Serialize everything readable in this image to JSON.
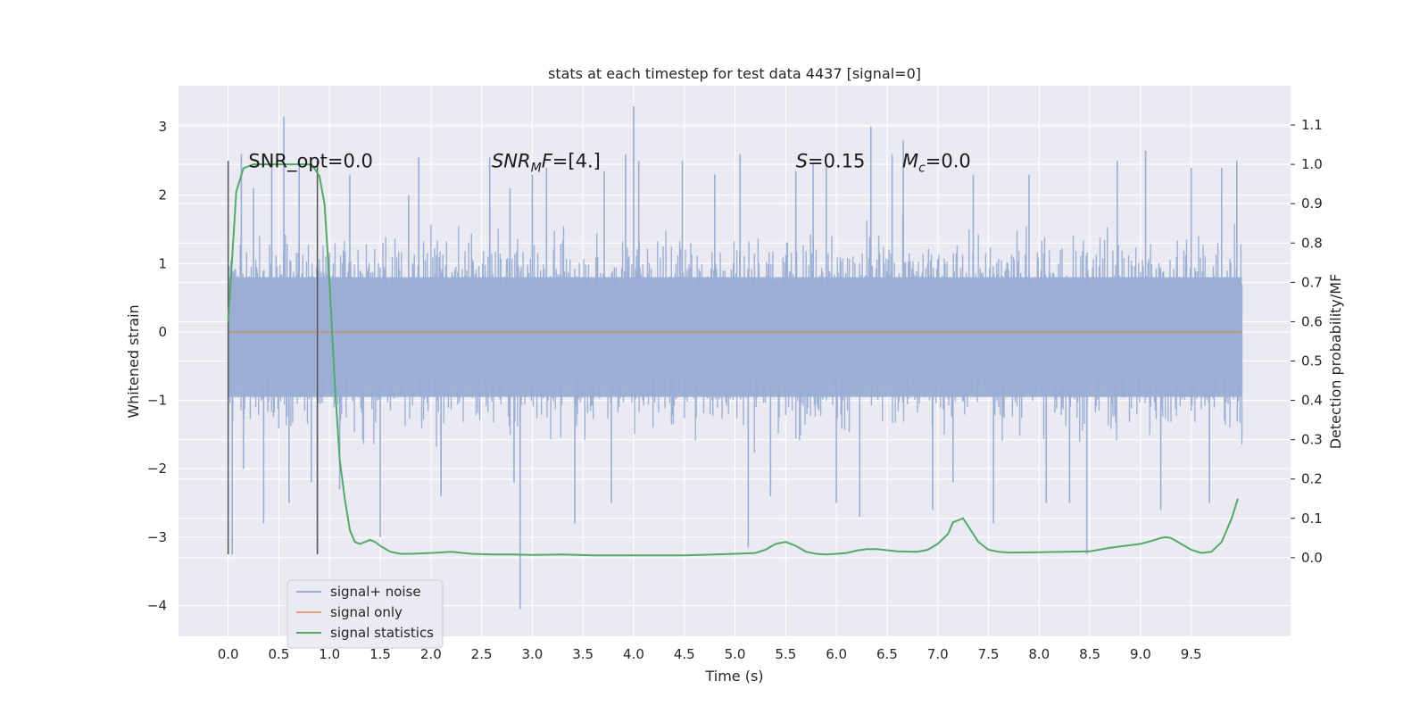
{
  "chart_data": {
    "type": "line",
    "title": "stats at each timestep for test data 4437 [signal=0]",
    "xlabel": "Time (s)",
    "ylabel": "Whitened strain",
    "y2label": "Detection probability/MF",
    "xlim": [
      -0.49,
      10.48
    ],
    "ylim": [
      -4.45,
      3.6
    ],
    "y2lim": [
      -0.2,
      1.2
    ],
    "x_ticks": [
      "0.0",
      "0.5",
      "1.0",
      "1.5",
      "2.0",
      "2.5",
      "3.0",
      "3.5",
      "4.0",
      "4.5",
      "5.0",
      "5.5",
      "6.0",
      "6.5",
      "7.0",
      "7.5",
      "8.0",
      "8.5",
      "9.0",
      "9.5"
    ],
    "y_ticks": [
      "3",
      "2",
      "1",
      "0",
      "−1",
      "−2",
      "−3",
      "−4"
    ],
    "y2_ticks": [
      "1.1",
      "1.0",
      "0.9",
      "0.8",
      "0.7",
      "0.6",
      "0.5",
      "0.4",
      "0.3",
      "0.2",
      "0.1",
      "0.0"
    ],
    "grid": true,
    "legend_position": "lower-left",
    "colors": {
      "noise": "#9aaed3",
      "signal": "#dd8452",
      "stats": "#55a868",
      "background": "#eaeaf2",
      "vline": "#555555"
    },
    "series": [
      {
        "name": "signal+ noise",
        "kind": "noise_band",
        "x_range": [
          0.0,
          10.0
        ],
        "typical_envelope": [
          -1.5,
          1.35
        ],
        "spikes": [
          [
            0.04,
            -3.25
          ],
          [
            0.15,
            -2.0
          ],
          [
            0.13,
            2.6
          ],
          [
            0.25,
            2.1
          ],
          [
            0.35,
            -2.8
          ],
          [
            0.43,
            2.4
          ],
          [
            0.55,
            3.15
          ],
          [
            0.6,
            -2.5
          ],
          [
            0.7,
            2.5
          ],
          [
            0.82,
            -2.2
          ],
          [
            0.88,
            -3.25
          ],
          [
            1.1,
            -2.3
          ],
          [
            1.2,
            2.3
          ],
          [
            1.5,
            -3.0
          ],
          [
            1.78,
            2.0
          ],
          [
            1.88,
            2.55
          ],
          [
            2.1,
            -2.4
          ],
          [
            2.58,
            2.55
          ],
          [
            2.78,
            2.1
          ],
          [
            2.82,
            -2.2
          ],
          [
            2.88,
            -4.05
          ],
          [
            3.0,
            2.3
          ],
          [
            3.14,
            2.4
          ],
          [
            3.42,
            -2.8
          ],
          [
            3.71,
            2.35
          ],
          [
            3.78,
            -2.5
          ],
          [
            3.92,
            2.6
          ],
          [
            4.0,
            3.3
          ],
          [
            4.05,
            2.5
          ],
          [
            4.48,
            2.5
          ],
          [
            4.8,
            2.3
          ],
          [
            5.05,
            2.6
          ],
          [
            5.13,
            -3.15
          ],
          [
            5.35,
            -2.4
          ],
          [
            5.6,
            2.35
          ],
          [
            5.77,
            2.45
          ],
          [
            5.9,
            2.45
          ],
          [
            6.0,
            -2.5
          ],
          [
            6.23,
            -2.7
          ],
          [
            6.34,
            3.0
          ],
          [
            6.55,
            2.6
          ],
          [
            6.66,
            2.8
          ],
          [
            6.95,
            -2.6
          ],
          [
            7.15,
            -2.2
          ],
          [
            7.35,
            2.3
          ],
          [
            7.55,
            -2.8
          ],
          [
            7.9,
            2.3
          ],
          [
            8.07,
            -2.5
          ],
          [
            8.3,
            -2.5
          ],
          [
            8.47,
            -3.25
          ],
          [
            8.77,
            2.5
          ],
          [
            9.05,
            2.65
          ],
          [
            9.2,
            -2.6
          ],
          [
            9.5,
            2.4
          ],
          [
            9.68,
            -2.5
          ],
          [
            9.8,
            2.4
          ],
          [
            9.95,
            2.5
          ]
        ]
      },
      {
        "name": "signal only",
        "kind": "line",
        "x": [
          0.0,
          10.0
        ],
        "y": [
          0.0,
          0.0
        ]
      },
      {
        "name": "signal statistics",
        "kind": "line",
        "axis": "right",
        "x": [
          0.0,
          0.08,
          0.15,
          0.25,
          0.35,
          0.45,
          0.55,
          0.65,
          0.75,
          0.8,
          0.85,
          0.9,
          0.95,
          1.0,
          1.05,
          1.1,
          1.15,
          1.2,
          1.25,
          1.3,
          1.35,
          1.4,
          1.45,
          1.5,
          1.6,
          1.7,
          1.8,
          2.0,
          2.2,
          2.4,
          2.6,
          2.8,
          3.0,
          3.3,
          3.6,
          4.0,
          4.5,
          4.8,
          5.0,
          5.2,
          5.3,
          5.4,
          5.5,
          5.55,
          5.6,
          5.7,
          5.8,
          5.9,
          6.0,
          6.1,
          6.2,
          6.3,
          6.4,
          6.6,
          6.8,
          6.9,
          7.0,
          7.1,
          7.15,
          7.2,
          7.25,
          7.3,
          7.4,
          7.5,
          7.6,
          7.7,
          8.0,
          8.5,
          8.7,
          9.0,
          9.1,
          9.2,
          9.25,
          9.3,
          9.4,
          9.5,
          9.6,
          9.7,
          9.8,
          9.9,
          9.96
        ],
        "y": [
          0.6,
          0.93,
          0.99,
          1.0,
          1.0,
          1.0,
          1.0,
          1.0,
          1.0,
          1.0,
          0.99,
          0.97,
          0.9,
          0.7,
          0.45,
          0.25,
          0.15,
          0.07,
          0.04,
          0.035,
          0.04,
          0.045,
          0.04,
          0.03,
          0.015,
          0.01,
          0.01,
          0.012,
          0.015,
          0.01,
          0.008,
          0.008,
          0.007,
          0.008,
          0.006,
          0.006,
          0.006,
          0.008,
          0.01,
          0.012,
          0.02,
          0.035,
          0.04,
          0.035,
          0.03,
          0.015,
          0.01,
          0.008,
          0.01,
          0.012,
          0.018,
          0.022,
          0.022,
          0.016,
          0.015,
          0.02,
          0.035,
          0.06,
          0.09,
          0.095,
          0.1,
          0.08,
          0.04,
          0.02,
          0.015,
          0.013,
          0.014,
          0.016,
          0.025,
          0.035,
          0.042,
          0.05,
          0.052,
          0.05,
          0.035,
          0.02,
          0.012,
          0.015,
          0.04,
          0.1,
          0.15
        ]
      }
    ],
    "vlines": [
      0.0,
      0.88
    ],
    "vline_extent": [
      -3.25,
      2.5
    ],
    "annotations": [
      {
        "text": "SNR_opt=0.0",
        "x": 0.2,
        "y": 2.5
      },
      {
        "text": "F=[4.]",
        "math_prefix": "SNR",
        "math_sub": "M",
        "x": 2.6,
        "y": 2.5
      },
      {
        "text": "=0.15",
        "math_prefix": "S",
        "x": 5.6,
        "y": 2.5
      },
      {
        "text": "=0.0",
        "math_prefix": "M",
        "math_sub": "c",
        "x": 6.65,
        "y": 2.5
      }
    ]
  }
}
